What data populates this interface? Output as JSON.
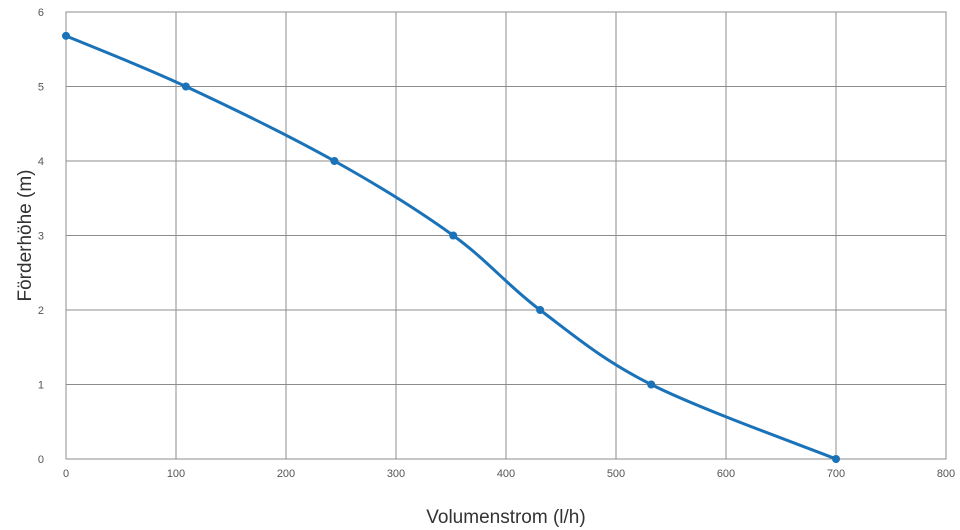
{
  "chart_data": {
    "type": "line",
    "title": "",
    "xlabel": "Volumenstrom (l/h)",
    "ylabel": "Förderhöhe (m)",
    "xlim": [
      0,
      800
    ],
    "ylim": [
      0,
      6
    ],
    "x_ticks": [
      "0",
      "100",
      "200",
      "300",
      "400",
      "500",
      "600",
      "700",
      "800"
    ],
    "y_ticks": [
      "0",
      "1",
      "2",
      "3",
      "4",
      "5",
      "6"
    ],
    "grid": true,
    "legend": "none",
    "series": [
      {
        "color": "#1a72b8",
        "points": [
          {
            "x": 0,
            "y": 5.68
          },
          {
            "x": 109,
            "y": 5.0
          },
          {
            "x": 244,
            "y": 4.0
          },
          {
            "x": 352,
            "y": 3.0
          },
          {
            "x": 431,
            "y": 2.0
          },
          {
            "x": 532,
            "y": 1.0
          },
          {
            "x": 700,
            "y": 0.0
          }
        ]
      }
    ]
  }
}
